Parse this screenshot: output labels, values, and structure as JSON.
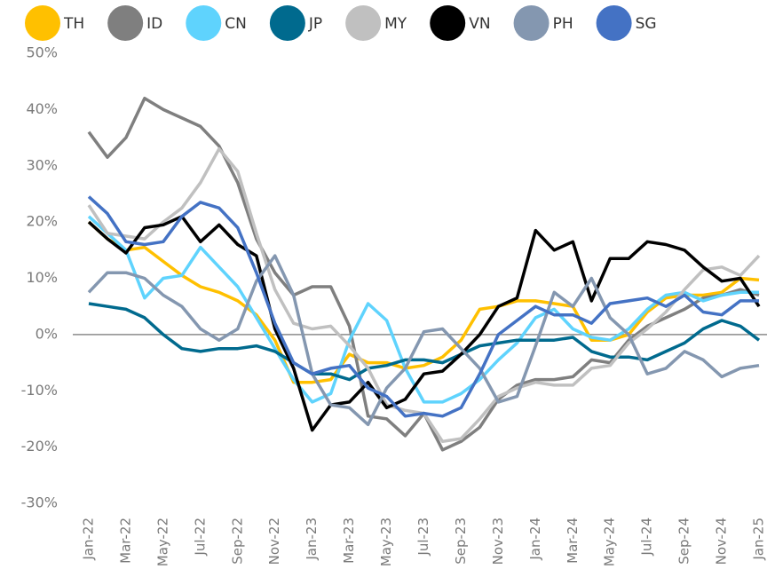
{
  "chart_data": {
    "type": "line",
    "categories": [
      "Jan-22",
      null,
      "Mar-22",
      null,
      "May-22",
      null,
      "Jul-22",
      null,
      "Sep-22",
      null,
      "Nov-22",
      null,
      "Jan-23",
      null,
      "Mar-23",
      null,
      "May-23",
      null,
      "Jul-23",
      null,
      "Sep-23",
      null,
      "Nov-23",
      null,
      "Jan-24",
      null,
      "Mar-24",
      null,
      "May-24",
      null,
      "Jul-24",
      null,
      "Sep-24",
      null,
      "Nov-24",
      null,
      "Jan-25"
    ],
    "series": [
      {
        "name": "TH",
        "color": "#ffc000",
        "values": [
          20,
          17,
          15,
          15.5,
          13,
          10.5,
          8.5,
          7.5,
          6,
          3.5,
          -1,
          -8.5,
          -8.5,
          -8,
          -3.5,
          -5,
          -5,
          -6,
          -5.5,
          -4,
          -1,
          4.5,
          5,
          6,
          6,
          5.5,
          5,
          -1,
          -1,
          0,
          4,
          6.5,
          7,
          7,
          7.5,
          10,
          9.7
        ]
      },
      {
        "name": "ID",
        "color": "#7f7f7f",
        "values": [
          36,
          31.5,
          35,
          42,
          40,
          38.5,
          37,
          33.5,
          27,
          17,
          11,
          7,
          8.5,
          8.5,
          1.5,
          -14.5,
          -15,
          -18,
          -14,
          -20.5,
          -19,
          -16.5,
          -11.5,
          -9,
          -8,
          -8,
          -7.5,
          -4.5,
          -5,
          -1,
          1.5,
          3,
          4.5,
          6.5,
          7,
          8,
          7
        ]
      },
      {
        "name": "CN",
        "color": "#5fd3fd",
        "values": [
          21,
          18,
          15,
          6.5,
          10,
          10.5,
          15.5,
          12,
          8.5,
          3,
          -2.5,
          -8,
          -12,
          -10.5,
          -1,
          5.5,
          2.5,
          -6,
          -12,
          -12,
          -10.5,
          -8,
          -4.5,
          -1.5,
          3,
          4.5,
          1,
          -0.5,
          -1,
          1,
          4.5,
          7,
          7.5,
          6,
          7,
          7.5,
          7.5
        ]
      },
      {
        "name": "JP",
        "color": "#006a8e",
        "values": [
          5.5,
          5,
          4.5,
          3,
          0,
          -2.5,
          -3,
          -2.5,
          -2.5,
          -2,
          -3,
          -5,
          -7,
          -7,
          -8,
          -6,
          -5.5,
          -4.5,
          -4.5,
          -5,
          -3.5,
          -2,
          -1.5,
          -1,
          -1,
          -1,
          -0.5,
          -3,
          -4,
          -4,
          -4.5,
          -3,
          -1.5,
          1,
          2.5,
          1.5,
          -1
        ]
      },
      {
        "name": "MY",
        "color": "#c0c0c0",
        "values": [
          23,
          18,
          17.5,
          17,
          20,
          22.5,
          27,
          33,
          29,
          18,
          8,
          2,
          1,
          1.5,
          -2,
          -6,
          -12.5,
          -13.5,
          -14,
          -19,
          -18.5,
          -15,
          -11,
          -9.5,
          -8.5,
          -9,
          -9,
          -6,
          -5.5,
          -1.5,
          1,
          4,
          8,
          11.5,
          12,
          10.5,
          14
        ]
      },
      {
        "name": "VN",
        "color": "#000000",
        "values": [
          20,
          17,
          14.5,
          19,
          19.5,
          21,
          16.5,
          19.5,
          16,
          14,
          1,
          -6,
          -17,
          -12.5,
          -12,
          -8.5,
          -13,
          -11.5,
          -7,
          -6.5,
          -3.5,
          0,
          5,
          6.5,
          18.5,
          15,
          16.5,
          6,
          13.5,
          13.5,
          16.5,
          16,
          15,
          12,
          9.5,
          10,
          5
        ]
      },
      {
        "name": "PH",
        "color": "#8497b0",
        "values": [
          7.5,
          11,
          11,
          10,
          7,
          5,
          1,
          -1,
          1,
          9.5,
          14,
          7,
          -7,
          -12.5,
          -13,
          -16,
          -9.5,
          -6,
          0.5,
          1,
          -2.5,
          -6,
          -12,
          -11,
          -2,
          7.5,
          5,
          10,
          3,
          0,
          -7,
          -6,
          -3,
          -4.5,
          -7.5,
          -6,
          -5.5
        ]
      },
      {
        "name": "SG",
        "color": "#4472c4",
        "values": [
          24.5,
          21.5,
          16.5,
          16,
          16.5,
          21,
          23.5,
          22.5,
          19,
          11,
          2,
          -5,
          -7,
          -6,
          -5.5,
          -9.5,
          -11,
          -14.5,
          -14,
          -14.5,
          -13,
          -7,
          0,
          2.5,
          5,
          3.5,
          3.5,
          2,
          5.5,
          6,
          6.5,
          5,
          7,
          4,
          3.5,
          6,
          6
        ]
      }
    ],
    "ylim": [
      -30,
      50
    ],
    "yticks": [
      {
        "value": 50,
        "label": "50%"
      },
      {
        "value": 40,
        "label": "40%"
      },
      {
        "value": 30,
        "label": "30%"
      },
      {
        "value": 20,
        "label": "20%"
      },
      {
        "value": 10,
        "label": "10%"
      },
      {
        "value": 0,
        "label": "0%"
      },
      {
        "value": -10,
        "label": "-10%"
      },
      {
        "value": -20,
        "label": "-20%"
      },
      {
        "value": -30,
        "label": "-30%"
      }
    ],
    "grid": false,
    "legend": "top"
  }
}
